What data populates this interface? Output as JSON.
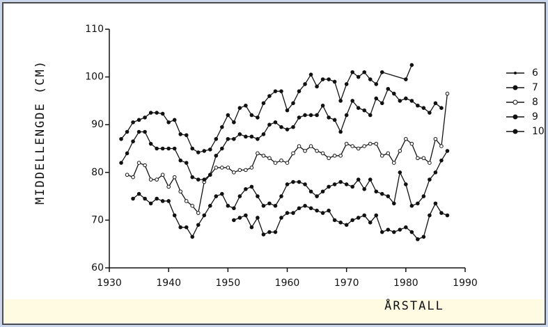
{
  "chart_data": {
    "type": "line",
    "xlabel": "ÅRSTALL",
    "ylabel": "MIDDELLENGDE (CM)",
    "xlim": [
      1930,
      1990
    ],
    "xticks": [
      1930,
      1940,
      1950,
      1960,
      1970,
      1980,
      1990
    ],
    "ylim": [
      60,
      110
    ],
    "yticks": [
      60,
      70,
      80,
      90,
      100,
      110
    ],
    "color": "#111111",
    "series": [
      {
        "name": "6",
        "x": [
          1951,
          1952,
          1953,
          1954,
          1955,
          1956,
          1957,
          1958,
          1959,
          1960,
          1961,
          1962,
          1963,
          1964,
          1965,
          1966,
          1967,
          1968,
          1969,
          1970,
          1971,
          1972,
          1973,
          1974,
          1975,
          1976,
          1977,
          1978,
          1979,
          1980,
          1981,
          1982,
          1983,
          1984,
          1985,
          1986,
          1987
        ],
        "values": [
          70,
          70.5,
          71,
          68.5,
          70.5,
          67,
          67.5,
          67.5,
          70.5,
          71.5,
          71.5,
          72.5,
          73,
          72.5,
          72,
          71.5,
          72,
          70,
          69.5,
          69,
          70,
          70.5,
          71,
          69.5,
          71,
          67.5,
          68,
          67.5,
          68,
          68.5,
          67.5,
          66,
          66.5,
          71,
          73.5,
          71.5,
          71
        ]
      },
      {
        "name": "7",
        "x": [
          1934,
          1935,
          1936,
          1937,
          1938,
          1939,
          1940,
          1941,
          1942,
          1943,
          1944,
          1945,
          1946,
          1947,
          1948,
          1949,
          1950,
          1951,
          1952,
          1953,
          1954,
          1955,
          1956,
          1957,
          1958,
          1959,
          1960,
          1961,
          1962,
          1963,
          1964,
          1965,
          1966,
          1967,
          1968,
          1969,
          1970,
          1971,
          1972,
          1973,
          1974,
          1975,
          1976,
          1977,
          1978,
          1979,
          1980,
          1981,
          1982,
          1983,
          1984,
          1985,
          1986,
          1987
        ],
        "values": [
          74.5,
          75.5,
          74.5,
          73.5,
          74.5,
          74,
          74,
          71,
          68.5,
          68.5,
          66.5,
          69,
          71,
          73,
          75,
          75.5,
          73,
          72.5,
          75,
          76.5,
          77,
          75,
          73,
          73.5,
          73,
          75,
          77.5,
          78,
          78,
          77.5,
          76,
          75,
          76,
          77,
          77.5,
          78,
          77.5,
          77,
          78.5,
          76.5,
          78.5,
          76,
          75.5,
          75,
          73.5,
          80,
          77.5,
          73,
          73.5,
          75,
          78.5,
          80,
          82.5,
          84.5
        ]
      },
      {
        "name": "8",
        "x": [
          1933,
          1934,
          1935,
          1936,
          1937,
          1938,
          1939,
          1940,
          1941,
          1942,
          1943,
          1944,
          1945,
          1946,
          1947,
          1948,
          1949,
          1950,
          1951,
          1952,
          1953,
          1954,
          1955,
          1956,
          1957,
          1958,
          1959,
          1960,
          1961,
          1962,
          1963,
          1964,
          1965,
          1966,
          1967,
          1968,
          1969,
          1970,
          1971,
          1972,
          1973,
          1974,
          1975,
          1976,
          1977,
          1978,
          1979,
          1980,
          1981,
          1982,
          1983,
          1984,
          1985,
          1986,
          1987
        ],
        "values": [
          79.5,
          79,
          82,
          81.5,
          78.5,
          78.5,
          79.5,
          77,
          79,
          76,
          74,
          73,
          71.5,
          78,
          79.5,
          81,
          81,
          81,
          80,
          80.5,
          80.5,
          81,
          84,
          83.5,
          83,
          82,
          82.5,
          82,
          84,
          85.5,
          84.5,
          85.5,
          84.5,
          84,
          83,
          83.5,
          83.5,
          86,
          85.5,
          85,
          85.5,
          86,
          86,
          83.5,
          84,
          82,
          84.5,
          87,
          86,
          83,
          83,
          82,
          87,
          85.5,
          96.5
        ]
      },
      {
        "name": "9",
        "x": [
          1932,
          1933,
          1934,
          1935,
          1936,
          1937,
          1938,
          1939,
          1940,
          1941,
          1942,
          1943,
          1944,
          1945,
          1946,
          1947,
          1948,
          1949,
          1950,
          1951,
          1952,
          1953,
          1954,
          1955,
          1956,
          1957,
          1958,
          1959,
          1960,
          1961,
          1962,
          1963,
          1964,
          1965,
          1966,
          1967,
          1968,
          1969,
          1970,
          1971,
          1972,
          1973,
          1974,
          1975,
          1976,
          1977,
          1978,
          1979,
          1980,
          1981,
          1982,
          1983,
          1984,
          1985,
          1986
        ],
        "values": [
          82,
          84,
          86.5,
          88.5,
          88.5,
          86,
          85,
          85,
          85,
          85,
          82.5,
          82,
          79,
          78.5,
          78.5,
          79.5,
          83.5,
          85,
          87,
          87,
          88,
          87.5,
          87.5,
          87,
          88,
          90,
          90.5,
          89.5,
          89,
          89.5,
          91.5,
          92,
          92,
          92,
          94,
          91.5,
          91,
          88.5,
          92,
          95,
          93.5,
          93,
          92,
          95.5,
          94.5,
          97.5,
          96.5,
          95,
          95.5,
          95,
          94,
          93.5,
          92.5,
          94.5,
          93.5
        ]
      },
      {
        "name": "10",
        "x": [
          1932,
          1933,
          1934,
          1935,
          1936,
          1937,
          1938,
          1939,
          1940,
          1941,
          1942,
          1943,
          1944,
          1945,
          1946,
          1947,
          1948,
          1949,
          1950,
          1951,
          1952,
          1953,
          1954,
          1955,
          1956,
          1957,
          1958,
          1959,
          1960,
          1961,
          1962,
          1963,
          1964,
          1965,
          1966,
          1967,
          1968,
          1969,
          1970,
          1971,
          1972,
          1973,
          1974,
          1975,
          1976,
          1980,
          1981
        ],
        "values": [
          87,
          88.5,
          90.5,
          91,
          91.5,
          92.5,
          92.5,
          92.3,
          90.5,
          91,
          88,
          87.8,
          85,
          84.2,
          84.5,
          84.8,
          87,
          89.5,
          92,
          90.5,
          93.5,
          94,
          92,
          91.5,
          94.5,
          96,
          97,
          97,
          93,
          94.5,
          97,
          98.5,
          100.5,
          98,
          99.5,
          99.5,
          99,
          95,
          98.5,
          101,
          100,
          101,
          99.5,
          98.5,
          101,
          99.5,
          102.5
        ]
      }
    ]
  }
}
